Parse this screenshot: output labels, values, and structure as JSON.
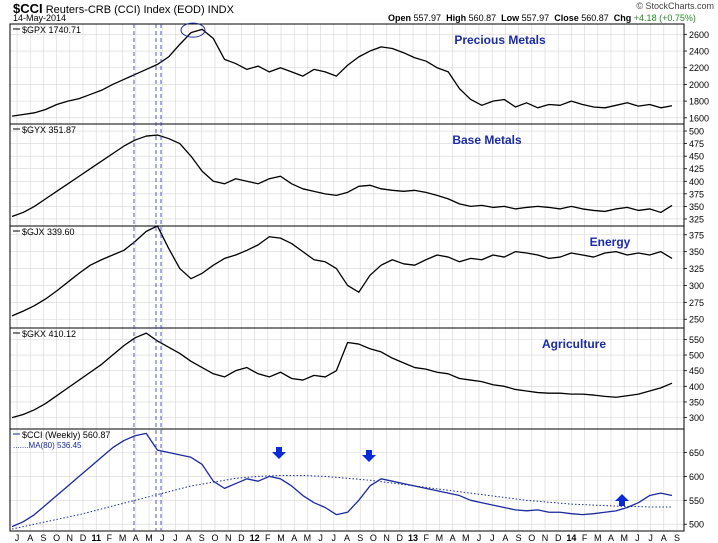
{
  "header": {
    "symbol": "$CCI",
    "description": "Reuters-CRB (CCI) Index (EOD)  INDX",
    "date": "14-May-2014",
    "brand": "© StockCharts.com",
    "quote": {
      "open_label": "Open",
      "open": "557.97",
      "high_label": "High",
      "high": "560.87",
      "low_label": "Low",
      "low": "557.97",
      "close_label": "Close",
      "close": "560.87",
      "chg_label": "Chg",
      "chg": "+4.18 (+0.75%)"
    }
  },
  "colors": {
    "price": "#000000",
    "cci": "#1a2a9c",
    "title": "#1a2aa8",
    "vline": "#4444cc",
    "grid": "#d6d6d6",
    "arrow": "#0a2ad6"
  },
  "chart_data": [
    {
      "type": "line",
      "legend": "$GPX 1740.71",
      "title": "Precious Metals",
      "ylim": [
        1550,
        2700
      ],
      "yticks": [
        1600,
        1800,
        2000,
        2200,
        2400,
        2600
      ],
      "values": [
        1620,
        1640,
        1660,
        1700,
        1760,
        1800,
        1830,
        1880,
        1930,
        2000,
        2060,
        2120,
        2180,
        2240,
        2330,
        2480,
        2620,
        2660,
        2550,
        2300,
        2250,
        2180,
        2220,
        2150,
        2200,
        2150,
        2100,
        2180,
        2150,
        2100,
        2230,
        2330,
        2400,
        2450,
        2430,
        2380,
        2320,
        2280,
        2200,
        2150,
        1950,
        1820,
        1750,
        1800,
        1820,
        1730,
        1780,
        1720,
        1760,
        1750,
        1800,
        1760,
        1730,
        1720,
        1750,
        1780,
        1740,
        1760,
        1720,
        1745
      ],
      "annotation": "circle"
    },
    {
      "type": "line",
      "legend": "$GYX 351.87",
      "title": "Base Metals",
      "ylim": [
        315,
        510
      ],
      "yticks": [
        325,
        350,
        375,
        400,
        425,
        450,
        475,
        500
      ],
      "values": [
        330,
        338,
        350,
        365,
        380,
        395,
        410,
        425,
        440,
        455,
        470,
        482,
        490,
        492,
        485,
        475,
        450,
        420,
        400,
        395,
        405,
        400,
        395,
        405,
        410,
        395,
        385,
        380,
        375,
        372,
        378,
        390,
        392,
        385,
        382,
        380,
        382,
        378,
        372,
        365,
        355,
        350,
        352,
        348,
        350,
        345,
        348,
        350,
        348,
        345,
        350,
        345,
        342,
        340,
        345,
        348,
        342,
        345,
        338,
        352
      ]
    },
    {
      "type": "line",
      "legend": "$GJX 339.60",
      "title": "Energy",
      "ylim": [
        240,
        385
      ],
      "yticks": [
        250,
        275,
        300,
        325,
        350,
        375
      ],
      "values": [
        255,
        262,
        270,
        280,
        292,
        305,
        318,
        330,
        338,
        345,
        352,
        365,
        380,
        388,
        355,
        325,
        310,
        318,
        330,
        340,
        345,
        352,
        360,
        372,
        370,
        362,
        350,
        338,
        335,
        325,
        300,
        290,
        315,
        330,
        338,
        332,
        330,
        338,
        345,
        342,
        335,
        340,
        338,
        345,
        342,
        350,
        348,
        345,
        340,
        342,
        348,
        345,
        342,
        348,
        350,
        345,
        348,
        345,
        350,
        340
      ]
    },
    {
      "type": "line",
      "legend": "$GKX 410.12",
      "title": "Agriculture",
      "ylim": [
        270,
        580
      ],
      "yticks": [
        300,
        350,
        400,
        450,
        500,
        550
      ],
      "values": [
        300,
        310,
        325,
        345,
        370,
        395,
        420,
        445,
        470,
        500,
        530,
        555,
        570,
        545,
        525,
        505,
        480,
        460,
        440,
        430,
        450,
        460,
        440,
        430,
        445,
        425,
        420,
        435,
        430,
        450,
        540,
        535,
        520,
        510,
        490,
        475,
        460,
        455,
        445,
        440,
        425,
        420,
        415,
        405,
        400,
        390,
        385,
        380,
        378,
        378,
        375,
        375,
        372,
        368,
        365,
        370,
        375,
        385,
        395,
        410
      ]
    },
    {
      "type": "line",
      "legend": "$CCI (Weekly) 560.87",
      "legend2": "MA(80) 536.45",
      "ylim": [
        490,
        695
      ],
      "yticks": [
        500,
        550,
        600,
        650
      ],
      "values": [
        495,
        505,
        520,
        540,
        560,
        580,
        600,
        620,
        640,
        660,
        675,
        685,
        690,
        655,
        650,
        645,
        640,
        625,
        590,
        575,
        585,
        595,
        590,
        600,
        595,
        580,
        560,
        545,
        535,
        520,
        525,
        550,
        580,
        595,
        590,
        585,
        580,
        575,
        570,
        565,
        560,
        550,
        545,
        540,
        535,
        530,
        528,
        530,
        525,
        525,
        522,
        520,
        522,
        525,
        528,
        535,
        545,
        560,
        565,
        560
      ],
      "ma_values": [
        490,
        495,
        500,
        505,
        510,
        515,
        520,
        526,
        532,
        538,
        544,
        550,
        556,
        562,
        568,
        574,
        580,
        584,
        588,
        592,
        596,
        598,
        600,
        601,
        602,
        602,
        602,
        601,
        600,
        598,
        596,
        594,
        592,
        589,
        586,
        583,
        580,
        577,
        574,
        571,
        568,
        565,
        562,
        559,
        556,
        553,
        550,
        548,
        546,
        544,
        542,
        541,
        540,
        539,
        538,
        537,
        537,
        536,
        536,
        536
      ],
      "arrows": [
        "down",
        "down",
        "up"
      ]
    }
  ],
  "x_axis": {
    "labels": [
      "J",
      "A",
      "S",
      "O",
      "N",
      "D",
      "11",
      "F",
      "M",
      "A",
      "M",
      "J",
      "J",
      "A",
      "S",
      "O",
      "N",
      "D",
      "12",
      "F",
      "M",
      "A",
      "M",
      "J",
      "J",
      "A",
      "S",
      "O",
      "N",
      "D",
      "13",
      "F",
      "M",
      "A",
      "M",
      "J",
      "J",
      "A",
      "S",
      "O",
      "N",
      "D",
      "14",
      "F",
      "M",
      "A",
      "M",
      "J",
      "J",
      "A",
      "S"
    ]
  }
}
